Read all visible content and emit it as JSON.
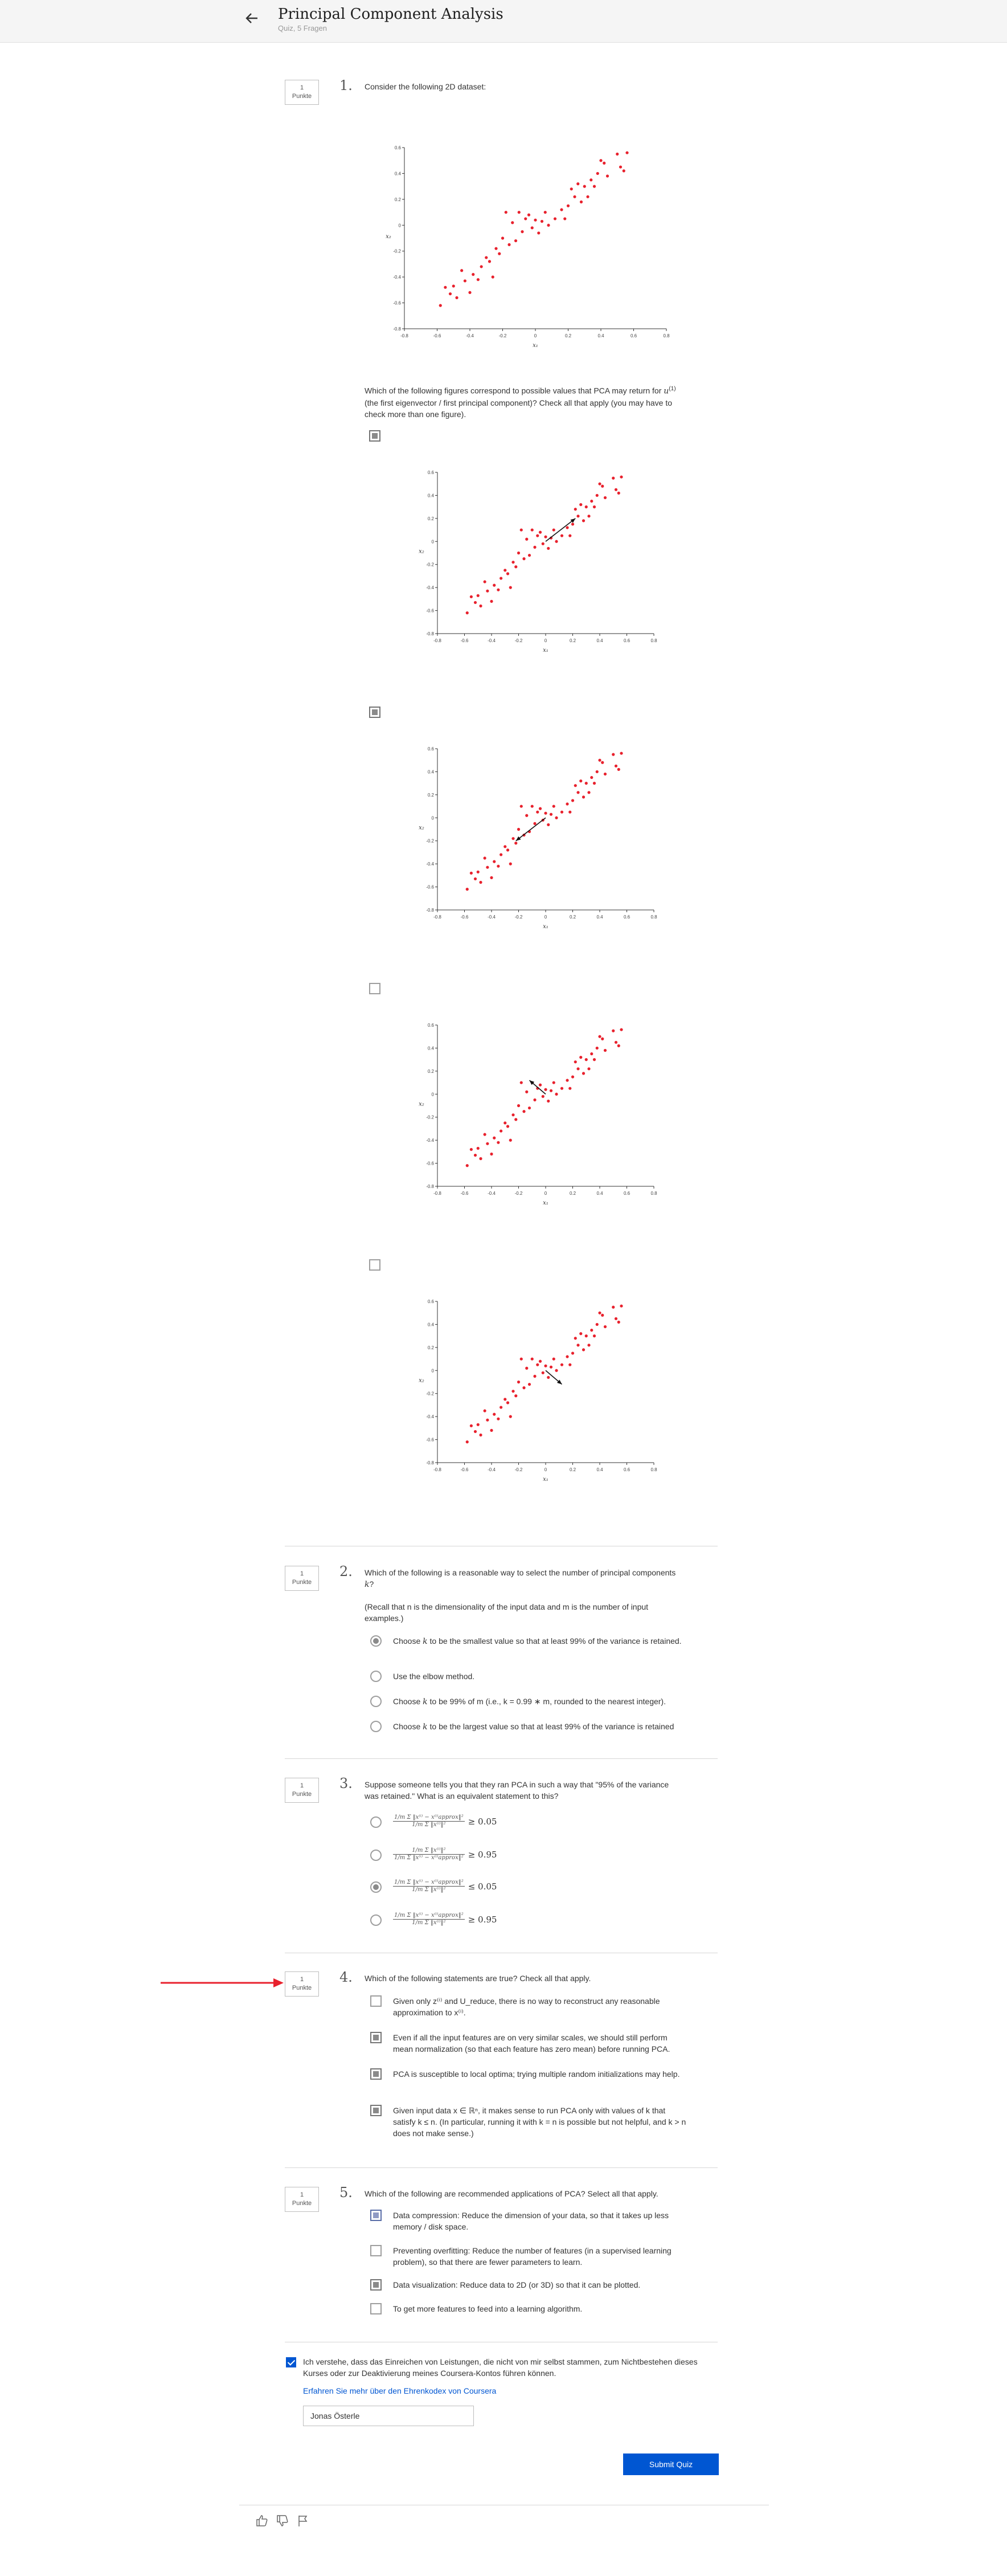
{
  "header": {
    "title": "Principal Component Analysis",
    "subtitle": "Quiz, 5 Fragen"
  },
  "points_label": "1\nPunkte",
  "q1": {
    "number": "1.",
    "intro": "Consider the following 2D dataset:",
    "question_a": "Which of the following figures correspond to possible values that PCA may return for ",
    "question_u": "u",
    "question_sup": "(1)",
    "question_b": " (the first eigenvector / first principal component)? Check all that apply (you may have to check more than one figure).",
    "options": [
      {
        "checked": true,
        "arrow": "up-right"
      },
      {
        "checked": true,
        "arrow": "down-left"
      },
      {
        "checked": false,
        "arrow": "up-left"
      },
      {
        "checked": false,
        "arrow": "down-right"
      }
    ]
  },
  "chart_data": {
    "type": "scatter",
    "xlabel": "x₁",
    "ylabel": "x₂",
    "xlim": [
      -0.8,
      0.8
    ],
    "ylim": [
      -0.8,
      0.6
    ],
    "xticks": [
      "-0.8",
      "-0.6",
      "-0.4",
      "-0.2",
      "0",
      "0.2",
      "0.4",
      "0.6",
      "0.8"
    ],
    "yticks": [
      "0.6",
      "0.4",
      "0.2",
      "0",
      "-0.2",
      "-0.4",
      "-0.6",
      "-0.8"
    ],
    "point_color": "#e8212d",
    "points": [
      [
        -0.58,
        -0.62
      ],
      [
        -0.55,
        -0.48
      ],
      [
        -0.52,
        -0.53
      ],
      [
        -0.5,
        -0.47
      ],
      [
        -0.48,
        -0.56
      ],
      [
        -0.45,
        -0.35
      ],
      [
        -0.43,
        -0.43
      ],
      [
        -0.4,
        -0.52
      ],
      [
        -0.38,
        -0.38
      ],
      [
        -0.35,
        -0.42
      ],
      [
        -0.33,
        -0.32
      ],
      [
        -0.3,
        -0.25
      ],
      [
        -0.28,
        -0.28
      ],
      [
        -0.26,
        -0.4
      ],
      [
        -0.24,
        -0.18
      ],
      [
        -0.22,
        -0.22
      ],
      [
        -0.2,
        -0.1
      ],
      [
        -0.18,
        0.1
      ],
      [
        -0.16,
        -0.15
      ],
      [
        -0.14,
        0.02
      ],
      [
        -0.12,
        -0.12
      ],
      [
        -0.1,
        0.1
      ],
      [
        -0.08,
        -0.05
      ],
      [
        -0.06,
        0.05
      ],
      [
        -0.04,
        0.08
      ],
      [
        -0.02,
        -0.02
      ],
      [
        0.0,
        0.04
      ],
      [
        0.02,
        -0.06
      ],
      [
        0.04,
        0.03
      ],
      [
        0.06,
        0.1
      ],
      [
        0.08,
        0.0
      ],
      [
        0.12,
        0.05
      ],
      [
        0.16,
        0.12
      ],
      [
        0.18,
        0.05
      ],
      [
        0.2,
        0.15
      ],
      [
        0.22,
        0.28
      ],
      [
        0.24,
        0.22
      ],
      [
        0.26,
        0.32
      ],
      [
        0.28,
        0.18
      ],
      [
        0.3,
        0.3
      ],
      [
        0.32,
        0.22
      ],
      [
        0.34,
        0.35
      ],
      [
        0.36,
        0.3
      ],
      [
        0.38,
        0.4
      ],
      [
        0.4,
        0.5
      ],
      [
        0.42,
        0.48
      ],
      [
        0.44,
        0.38
      ],
      [
        0.5,
        0.55
      ],
      [
        0.52,
        0.45
      ],
      [
        0.54,
        0.42
      ],
      [
        0.56,
        0.56
      ]
    ]
  },
  "q2": {
    "number": "2.",
    "question_a": "Which of the following is a reasonable way to select the number of principal components ",
    "question_k": "k",
    "question_b": "?",
    "note": "(Recall that n is the dimensionality of the input data and m is the number of input examples.)",
    "options": [
      {
        "checked": true,
        "a": "Choose ",
        "k": "k",
        "b": " to be the smallest value so that at least 99% of the variance is retained."
      },
      {
        "checked": false,
        "a": "Use the elbow method.",
        "k": "",
        "b": ""
      },
      {
        "checked": false,
        "a": "Choose ",
        "k": "k",
        "b": " to be 99% of m (i.e., k = 0.99 ∗ m, rounded to the nearest integer)."
      },
      {
        "checked": false,
        "a": "Choose ",
        "k": "k",
        "b": " to be the largest value so that at least 99% of the variance is retained"
      }
    ]
  },
  "q3": {
    "number": "3.",
    "question": "Suppose someone tells you that they ran PCA in such a way that \"95% of the variance was retained.\" What is an equivalent statement to this?",
    "options": [
      {
        "checked": false,
        "num": "1/m Σ ‖x⁽ⁱ⁾ − x⁽ⁱ⁾approx‖²",
        "den": "1/m Σ ‖x⁽ⁱ⁾‖²",
        "cmp": "≥ 0.05"
      },
      {
        "checked": false,
        "num": "1/m Σ ‖x⁽ⁱ⁾‖²",
        "den": "1/m Σ ‖x⁽ⁱ⁾ − x⁽ⁱ⁾approx‖²",
        "cmp": "≥ 0.95"
      },
      {
        "checked": true,
        "num": "1/m Σ ‖x⁽ⁱ⁾ − x⁽ⁱ⁾approx‖²",
        "den": "1/m Σ ‖x⁽ⁱ⁾‖²",
        "cmp": "≤ 0.05"
      },
      {
        "checked": false,
        "num": "1/m Σ ‖x⁽ⁱ⁾ − x⁽ⁱ⁾approx‖²",
        "den": "1/m Σ ‖x⁽ⁱ⁾‖²",
        "cmp": "≥ 0.95"
      }
    ]
  },
  "q4": {
    "number": "4.",
    "question": "Which of the following statements are true? Check all that apply.",
    "options": [
      {
        "checked": false,
        "text": "Given only z⁽ⁱ⁾ and U_reduce, there is no way to reconstruct any reasonable approximation to x⁽ⁱ⁾."
      },
      {
        "checked": true,
        "text": "Even if all the input features are on very similar scales, we should still perform mean normalization (so that each feature has zero mean) before running PCA."
      },
      {
        "checked": true,
        "text": "PCA is susceptible to local optima; trying multiple random initializations may help."
      },
      {
        "checked": true,
        "text": "Given input data x ∈ ℝⁿ, it makes sense to run PCA only with values of k that satisfy k ≤ n. (In particular, running it with k = n is possible but not helpful, and k > n does not make sense.)"
      }
    ]
  },
  "q5": {
    "number": "5.",
    "question": "Which of the following are recommended applications of PCA? Select all that apply.",
    "options": [
      {
        "checked": true,
        "text": "Data compression: Reduce the dimension of your data, so that it takes up less memory / disk space."
      },
      {
        "checked": false,
        "text": "Preventing overfitting: Reduce the number of features (in a supervised learning problem), so that there are fewer parameters to learn."
      },
      {
        "checked": true,
        "text": "Data visualization: Reduce data to 2D (or 3D) so that it can be plotted."
      },
      {
        "checked": false,
        "text": "To get more features to feed into a learning algorithm."
      }
    ]
  },
  "honor": {
    "text": "Ich verstehe, dass das Einreichen von Leistungen, die nicht von mir selbst stammen, zum Nichtbestehen dieses Kurses oder zur Deaktivierung meines Coursera-Kontos führen können.",
    "link": "Erfahren Sie mehr über den Ehrenkodex von Coursera",
    "name_value": "Jonas Österle"
  },
  "submit_label": "Submit Quiz",
  "colors": {
    "accent": "#0056d2",
    "annotation_arrow": "#e8212d"
  }
}
